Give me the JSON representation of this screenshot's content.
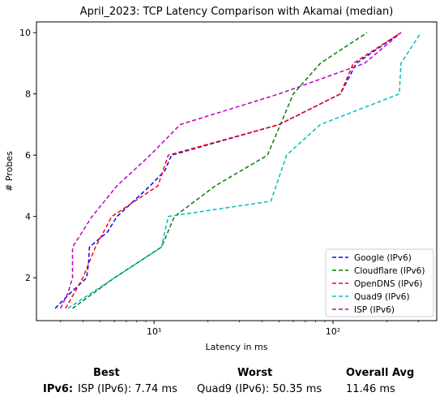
{
  "chart_data": {
    "type": "line",
    "title": "April_2023: TCP Latency Comparison with Akamai (median)",
    "xlabel": "Latency in ms",
    "ylabel": "# Probes",
    "xscale": "log",
    "xlim": [
      2.2,
      380
    ],
    "ylim": [
      0.6,
      10.35
    ],
    "xticks": [
      10,
      100
    ],
    "xtick_labels": [
      "10¹",
      "10²"
    ],
    "yticks": [
      2,
      4,
      6,
      8,
      10
    ],
    "legend_position": "lower-right",
    "series": [
      {
        "name": "Google (IPv6)",
        "color": "#0000ff",
        "x": [
          2.8,
          3.4,
          4.2,
          4.3,
          4.35,
          5.5,
          6.2,
          9.5,
          11.5,
          12.5,
          50,
          110,
          135,
          240
        ],
        "y": [
          1,
          1.5,
          2,
          2.5,
          3,
          3.5,
          4,
          5,
          5.5,
          6,
          7,
          8,
          9,
          10
        ]
      },
      {
        "name": "Cloudflare (IPv6)",
        "color": "#008000",
        "x": [
          3.5,
          6,
          11,
          13,
          22,
          43,
          60,
          85,
          155
        ],
        "y": [
          1,
          2,
          3,
          4,
          5,
          6,
          8,
          9,
          10
        ]
      },
      {
        "name": "OpenDNS (IPv6)",
        "color": "#ff0000",
        "x": [
          3.2,
          4,
          4.7,
          5.8,
          10.5,
          12,
          50,
          110,
          130,
          240
        ],
        "y": [
          1,
          2,
          3,
          4,
          5,
          6,
          7,
          8,
          9,
          10
        ]
      },
      {
        "name": "Quad9 (IPv6)",
        "color": "#00bfbf",
        "x": [
          3.3,
          11,
          12,
          45,
          55,
          85,
          235,
          240,
          310
        ],
        "y": [
          1,
          3,
          4,
          4.5,
          6,
          7,
          8,
          9,
          10
        ]
      },
      {
        "name": "ISP (IPv6)",
        "color": "#bf00bf",
        "x": [
          3.0,
          3.3,
          3.5,
          3.5,
          4.5,
          6.2,
          9.5,
          14,
          50,
          150,
          240
        ],
        "y": [
          1,
          1.5,
          2,
          3,
          4,
          5,
          6,
          7,
          8,
          9,
          10
        ]
      }
    ]
  },
  "summary": {
    "headers": [
      "Best",
      "Worst",
      "Overall Avg"
    ],
    "row_label": "IPv6:",
    "values": [
      "ISP (IPv6): 7.74 ms",
      "Quad9 (IPv6): 50.35 ms",
      "11.46 ms"
    ]
  }
}
